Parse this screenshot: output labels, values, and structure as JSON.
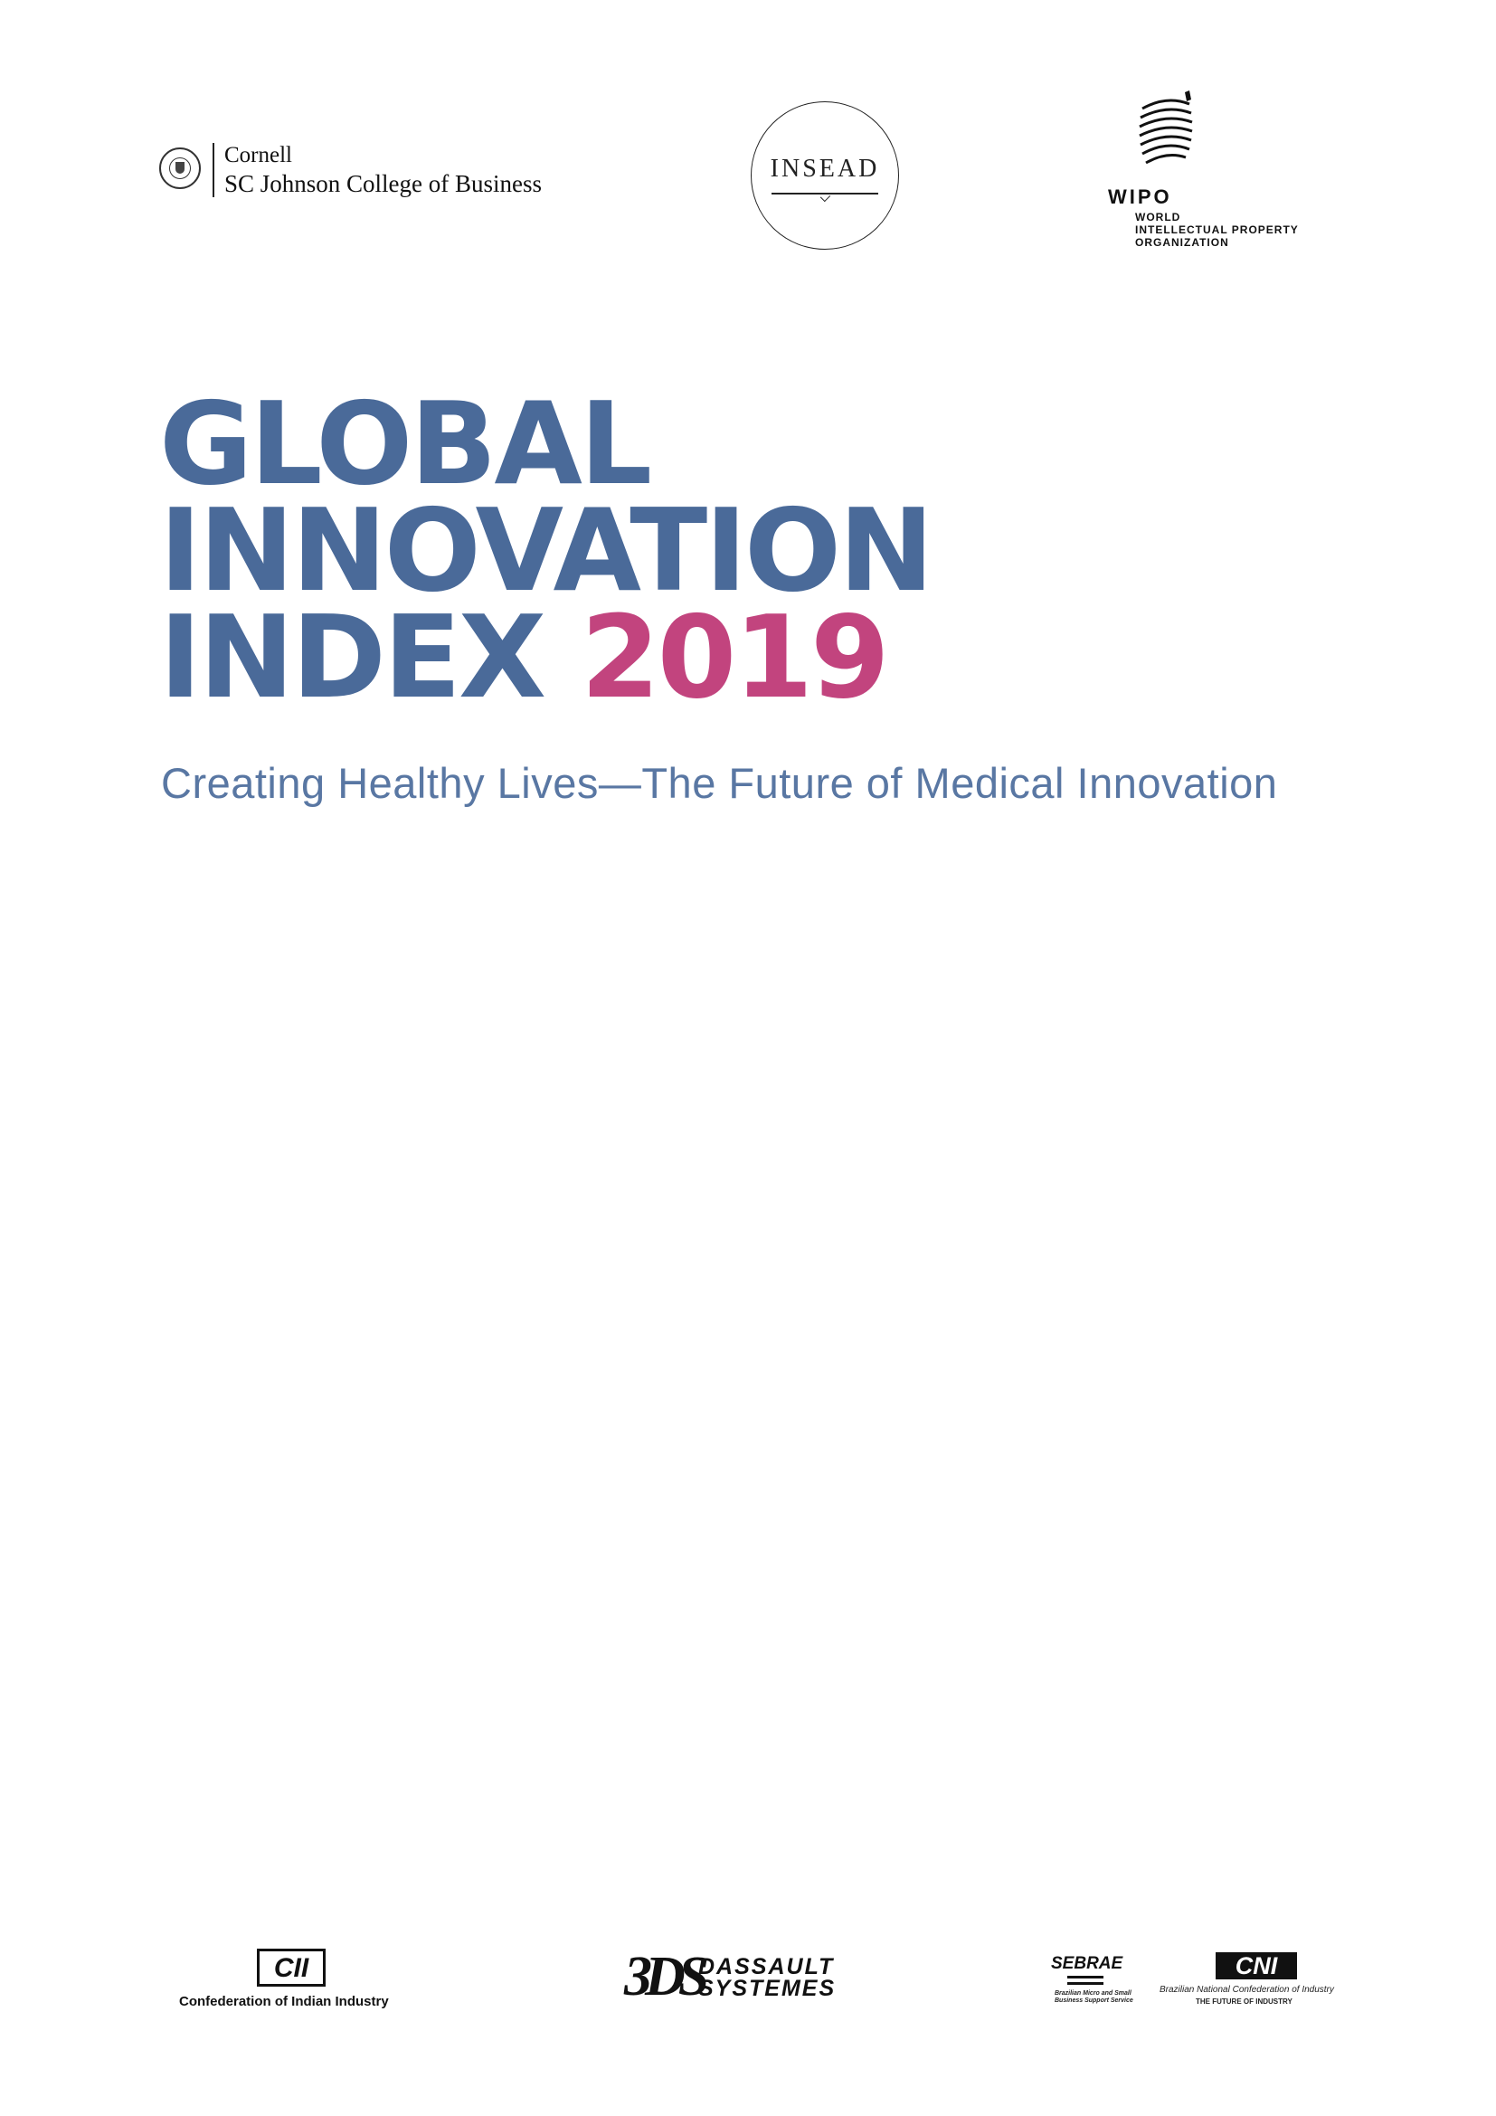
{
  "logos": {
    "cornell": {
      "line1": "Cornell",
      "line2": "SC Johnson College of Business"
    },
    "insead": {
      "name": "INSEAD"
    },
    "wipo": {
      "name": "WIPO",
      "line1": "WORLD",
      "line2": "INTELLECTUAL PROPERTY",
      "line3": "ORGANIZATION"
    }
  },
  "cover": {
    "title_line1": "GLOBAL",
    "title_line2": "INNOVATION",
    "title_line3": "INDEX",
    "year": "2019",
    "subtitle": "Creating Healthy Lives—The Future of Medical Innovation"
  },
  "colors": {
    "title": "#4a6a99",
    "year": "#c2447e",
    "subtitle": "#5977a3"
  },
  "partners": {
    "cii": {
      "mark": "CII",
      "caption": "Confederation of Indian Industry"
    },
    "dassault": {
      "mark": "3DS",
      "line1": "DASSAULT",
      "line2": "SYSTEMES"
    },
    "sebrae": {
      "name": "SEBRAE",
      "caption1": "Brazilian Micro and Small",
      "caption2": "Business Support Service"
    },
    "cni": {
      "mark": "CNI",
      "caption1": "Brazilian National Confederation of Industry",
      "caption2": "THE FUTURE OF INDUSTRY"
    }
  }
}
